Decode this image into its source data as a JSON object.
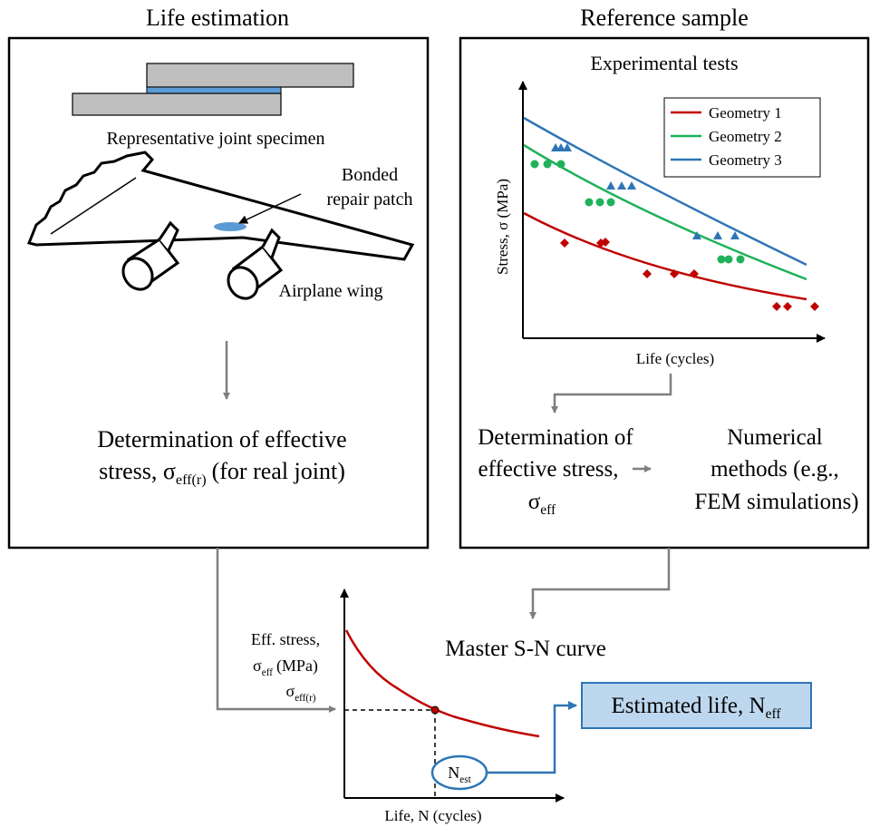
{
  "left_panel": {
    "title": "Life estimation",
    "specimen_label": "Representative joint specimen",
    "patch_label": [
      "Bonded",
      "repair patch"
    ],
    "wing_label": "Airplane wing",
    "result": {
      "line1": "Determination of effective",
      "line2_prefix": "stress, σ",
      "line2_subscript": "eff(r)",
      "line2_suffix": "(for real joint)"
    }
  },
  "right_panel": {
    "title": "Reference sample",
    "chart": {
      "title": "Experimental tests",
      "y_label": "Stress, σ (MPa)",
      "x_label": "Life (cycles)",
      "legend": [
        "Geometry 1",
        "Geometry 2",
        "Geometry 3"
      ]
    },
    "step1": {
      "lines": [
        "Determination of",
        "effective stress,"
      ],
      "symbol": "σ",
      "subscript": "eff"
    },
    "step2": {
      "lines": [
        "Numerical",
        "methods (e.g.,",
        "FEM simulations)"
      ]
    }
  },
  "master_curve": {
    "title": "Master S-N curve",
    "y_label": {
      "line1": "Eff. stress,",
      "symbol": "σ",
      "subscript": "eff",
      "unit": "(MPa)"
    },
    "marker_label": {
      "symbol": "σ",
      "subscript": "eff(r)"
    },
    "x_label": "Life, N (cycles)",
    "cycle_label": {
      "symbol": "N",
      "subscript": "est"
    }
  },
  "result_box": {
    "prefix": "Estimated life, N",
    "subscript": "eff"
  }
}
